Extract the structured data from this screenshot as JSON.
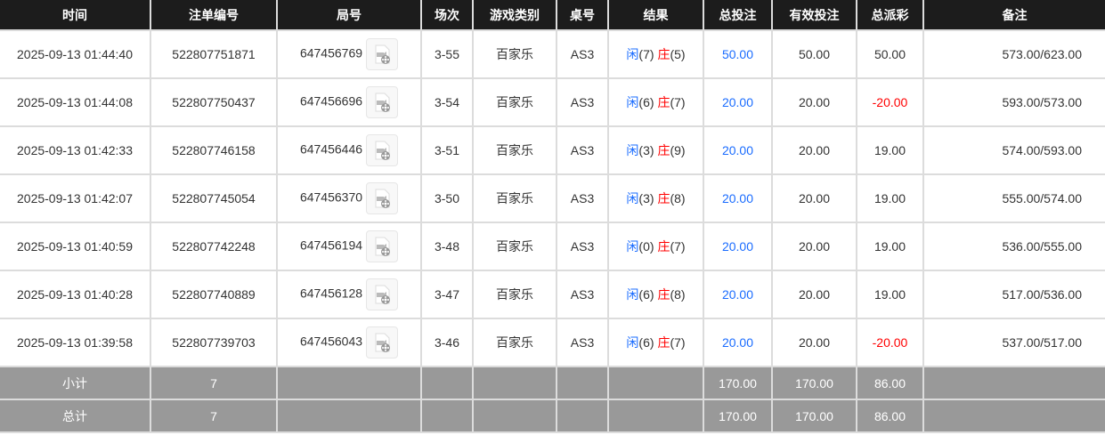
{
  "headers": [
    "时间",
    "注单编号",
    "局号",
    "场次",
    "游戏类别",
    "桌号",
    "结果",
    "总投注",
    "有效投注",
    "总派彩",
    "备注"
  ],
  "colors": {
    "player": "#1a6cff",
    "banker": "#ff0000",
    "negative": "#ff0000",
    "bet": "#1a6cff",
    "header_bg": "#1c1c1c",
    "summary_bg": "#999999"
  },
  "rows": [
    {
      "time": "2025-09-13 01:44:40",
      "bet_id": "522807751871",
      "round": "647456769",
      "shoe": "3-55",
      "game": "百家乐",
      "table": "AS3",
      "player": "闲",
      "player_pts": "(7)",
      "banker": "庄",
      "banker_pts": "(5)",
      "total_bet": "50.00",
      "valid_bet": "50.00",
      "payout": "50.00",
      "payout_negative": false,
      "memo": "573.00/623.00"
    },
    {
      "time": "2025-09-13 01:44:08",
      "bet_id": "522807750437",
      "round": "647456696",
      "shoe": "3-54",
      "game": "百家乐",
      "table": "AS3",
      "player": "闲",
      "player_pts": "(6)",
      "banker": "庄",
      "banker_pts": "(7)",
      "total_bet": "20.00",
      "valid_bet": "20.00",
      "payout": "-20.00",
      "payout_negative": true,
      "memo": "593.00/573.00"
    },
    {
      "time": "2025-09-13 01:42:33",
      "bet_id": "522807746158",
      "round": "647456446",
      "shoe": "3-51",
      "game": "百家乐",
      "table": "AS3",
      "player": "闲",
      "player_pts": "(3)",
      "banker": "庄",
      "banker_pts": "(9)",
      "total_bet": "20.00",
      "valid_bet": "20.00",
      "payout": "19.00",
      "payout_negative": false,
      "memo": "574.00/593.00"
    },
    {
      "time": "2025-09-13 01:42:07",
      "bet_id": "522807745054",
      "round": "647456370",
      "shoe": "3-50",
      "game": "百家乐",
      "table": "AS3",
      "player": "闲",
      "player_pts": "(3)",
      "banker": "庄",
      "banker_pts": "(8)",
      "total_bet": "20.00",
      "valid_bet": "20.00",
      "payout": "19.00",
      "payout_negative": false,
      "memo": "555.00/574.00"
    },
    {
      "time": "2025-09-13 01:40:59",
      "bet_id": "522807742248",
      "round": "647456194",
      "shoe": "3-48",
      "game": "百家乐",
      "table": "AS3",
      "player": "闲",
      "player_pts": "(0)",
      "banker": "庄",
      "banker_pts": "(7)",
      "total_bet": "20.00",
      "valid_bet": "20.00",
      "payout": "19.00",
      "payout_negative": false,
      "memo": "536.00/555.00"
    },
    {
      "time": "2025-09-13 01:40:28",
      "bet_id": "522807740889",
      "round": "647456128",
      "shoe": "3-47",
      "game": "百家乐",
      "table": "AS3",
      "player": "闲",
      "player_pts": "(6)",
      "banker": "庄",
      "banker_pts": "(8)",
      "total_bet": "20.00",
      "valid_bet": "20.00",
      "payout": "19.00",
      "payout_negative": false,
      "memo": "517.00/536.00"
    },
    {
      "time": "2025-09-13 01:39:58",
      "bet_id": "522807739703",
      "round": "647456043",
      "shoe": "3-46",
      "game": "百家乐",
      "table": "AS3",
      "player": "闲",
      "player_pts": "(6)",
      "banker": "庄",
      "banker_pts": "(7)",
      "total_bet": "20.00",
      "valid_bet": "20.00",
      "payout": "-20.00",
      "payout_negative": true,
      "memo": "537.00/517.00"
    }
  ],
  "summary": [
    {
      "label": "小计",
      "count": "7",
      "total_bet": "170.00",
      "valid_bet": "170.00",
      "payout": "86.00"
    },
    {
      "label": "总计",
      "count": "7",
      "total_bet": "170.00",
      "valid_bet": "170.00",
      "payout": "86.00"
    }
  ],
  "icons": {
    "replay": "video-file-icon"
  }
}
